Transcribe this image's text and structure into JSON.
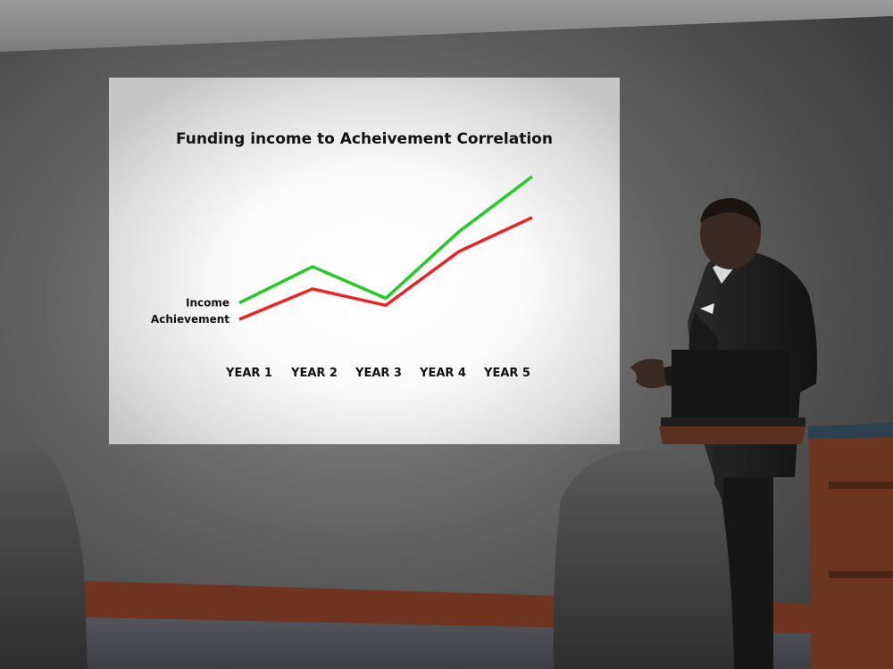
{
  "chart_data": {
    "type": "line",
    "title": "Funding income to Acheivement Correlation",
    "categories": [
      "YEAR 1",
      "YEAR 2",
      "YEAR 3",
      "YEAR 4",
      "YEAR 5"
    ],
    "series": [
      {
        "name": "Income",
        "values": [
          2.3,
          3.85,
          2.5,
          5.35,
          7.7
        ],
        "color": "#22cc22"
      },
      {
        "name": "Achievement",
        "values": [
          1.6,
          2.9,
          2.2,
          4.5,
          5.95
        ],
        "color": "#ee2222"
      }
    ],
    "ylim": [
      0,
      8
    ],
    "xlabel": "",
    "ylabel": "",
    "grid": false,
    "legend": "left-of-lines"
  },
  "scene": {
    "colors": {
      "wall": "#5f5f5f",
      "ceiling": "#8a8a8a",
      "screen": "#ffffff",
      "baseboard": "#7a3a22",
      "carpet": "#4a4c52",
      "suit": "#1c1c1c",
      "skin": "#3a2a22",
      "podium": "#5a3020",
      "cabinet": "#6b3520",
      "chair": "#4a4a4a"
    }
  }
}
